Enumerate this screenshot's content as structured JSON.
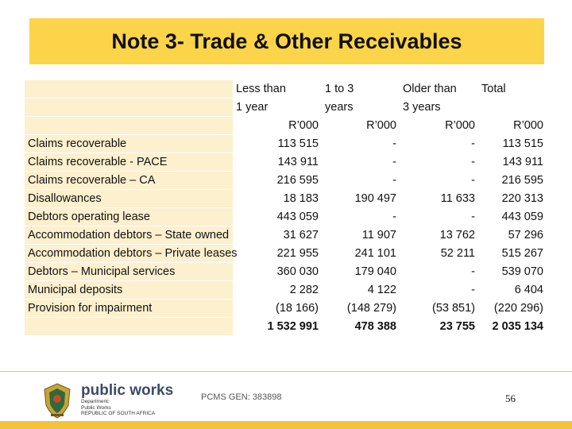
{
  "title": "Note 3- Trade & Other Receivables",
  "columns": {
    "c1": {
      "h1": "Less than",
      "h2": "1 year",
      "unit": "R’000"
    },
    "c2": {
      "h1": "1 to 3",
      "h2": "years",
      "unit": "R’000"
    },
    "c3": {
      "h1": "Older than",
      "h2": "3 years",
      "unit": "R’000"
    },
    "c4": {
      "h1": "Total",
      "h2": "",
      "unit": "R’000"
    }
  },
  "rows": [
    {
      "label": "Claims recoverable",
      "c1": "113 515",
      "c2": "-",
      "c3": "-",
      "c4": "113 515"
    },
    {
      "label": "Claims recoverable - PACE",
      "c1": "143 911",
      "c2": "-",
      "c3": "-",
      "c4": "143 911"
    },
    {
      "label": "Claims recoverable – CA",
      "c1": "216 595",
      "c2": "-",
      "c3": "-",
      "c4": "216 595"
    },
    {
      "label": "Disallowances",
      "c1": "18 183",
      "c2": "190 497",
      "c3": "11 633",
      "c4": "220 313"
    },
    {
      "label": "Debtors operating lease",
      "c1": "443 059",
      "c2": "-",
      "c3": "-",
      "c4": "443 059"
    },
    {
      "label": "Accommodation debtors – State owned",
      "c1": "31 627",
      "c2": "11 907",
      "c3": "13 762",
      "c4": "57 296"
    },
    {
      "label": "Accommodation debtors – Private leases",
      "c1": "221 955",
      "c2": "241 101",
      "c3": "52 211",
      "c4": "515 267"
    },
    {
      "label": "Debtors – Municipal services",
      "c1": "360 030",
      "c2": "179 040",
      "c3": "-",
      "c4": "539 070"
    },
    {
      "label": "Municipal deposits",
      "c1": "2 282",
      "c2": "4 122",
      "c3": "-",
      "c4": "6 404"
    },
    {
      "label": "Provision for impairment",
      "c1": "(18 166)",
      "c2": "(148 279)",
      "c3": "(53 851)",
      "c4": "(220 296)"
    }
  ],
  "totals": {
    "label": "",
    "c1": "1 532 991",
    "c2": "478 388",
    "c3": "23 755",
    "c4": "2 035 134"
  },
  "footer": {
    "logo_main": "public works",
    "logo_sub1": "Department:",
    "logo_sub2": "Public Works",
    "logo_sub3": "REPUBLIC OF SOUTH AFRICA",
    "reference": "PCMS GEN: 383898",
    "page_number": "56"
  },
  "colors": {
    "title_bg": "#fbd449",
    "label_bg": "#fdf0cf",
    "footer_bar": "#f5c23c"
  }
}
